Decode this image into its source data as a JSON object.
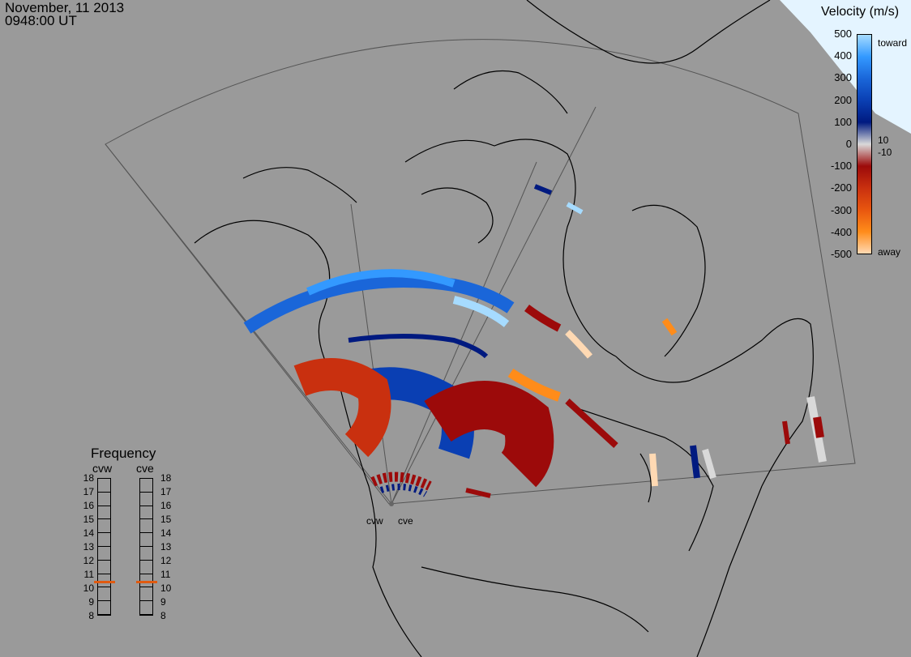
{
  "timestamp": {
    "date": "November, 11 2013",
    "time": "0948:00 UT"
  },
  "velocity_scale": {
    "title": "Velocity (m/s)",
    "ticks": [
      "500",
      "400",
      "300",
      "200",
      "100",
      "0",
      "-100",
      "-200",
      "-300",
      "-400",
      "-500"
    ],
    "side_labels": {
      "toward": "toward",
      "away": "away",
      "pos_small": "10",
      "neg_small": "-10"
    },
    "colors": [
      "#ffd9b3",
      "#ff8c1a",
      "#e8560f",
      "#c9300f",
      "#9c0a0a",
      "#d9d9d9",
      "#001a80",
      "#0a3fb3",
      "#1a66d9",
      "#3399ff",
      "#a6dbff"
    ]
  },
  "frequency": {
    "title": "Frequency",
    "radar_left": "cvw",
    "radar_right": "cve",
    "scale": [
      "18",
      "17",
      "16",
      "15",
      "14",
      "13",
      "12",
      "11",
      "10",
      "9",
      "8"
    ],
    "cvw_mhz": 10.5,
    "cve_mhz": 10.5,
    "marker_color": "#e05a10"
  },
  "radars": [
    "cvw",
    "cve"
  ],
  "map_colors": {
    "background": "#9a9a9a",
    "coastline": "#000000",
    "fov": "#555555"
  }
}
